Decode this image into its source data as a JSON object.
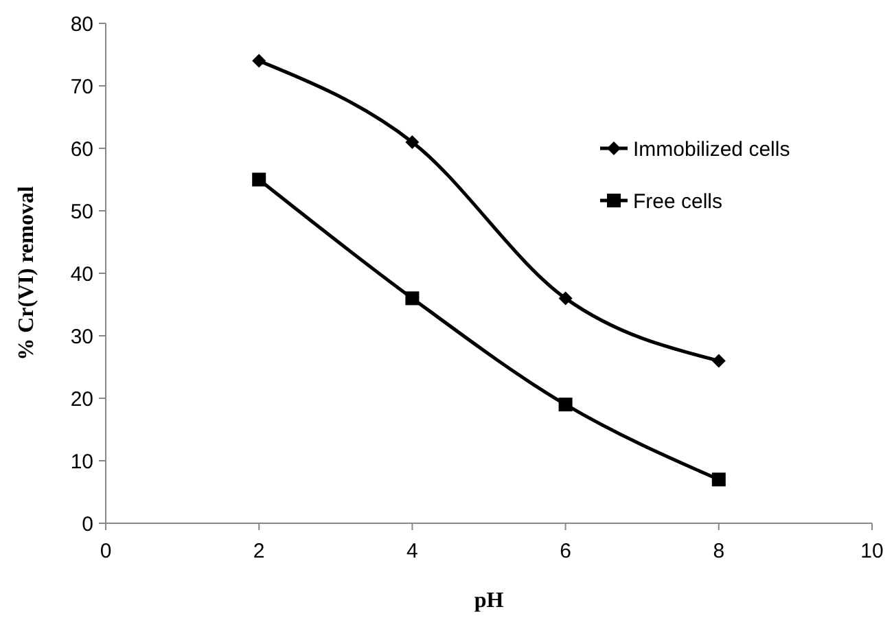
{
  "chart_data": {
    "type": "line",
    "xlabel": "pH",
    "ylabel": "% Cr(VI) removal",
    "x": [
      2,
      4,
      6,
      8
    ],
    "series": [
      {
        "name": "Immobilized cells",
        "color": "#000000",
        "values": [
          74,
          61,
          36,
          26
        ],
        "marker": "diamond"
      },
      {
        "name": "Free cells",
        "color": "#000000",
        "values": [
          55,
          36,
          19,
          7
        ],
        "marker": "square"
      }
    ],
    "xlim": [
      0,
      10
    ],
    "xticks": [
      0,
      2,
      4,
      6,
      8,
      10
    ],
    "ylim": [
      0,
      80
    ],
    "yticks": [
      0,
      10,
      20,
      30,
      40,
      50,
      60,
      70,
      80
    ],
    "grid": false,
    "legend": "top right",
    "line_style": "solid"
  }
}
